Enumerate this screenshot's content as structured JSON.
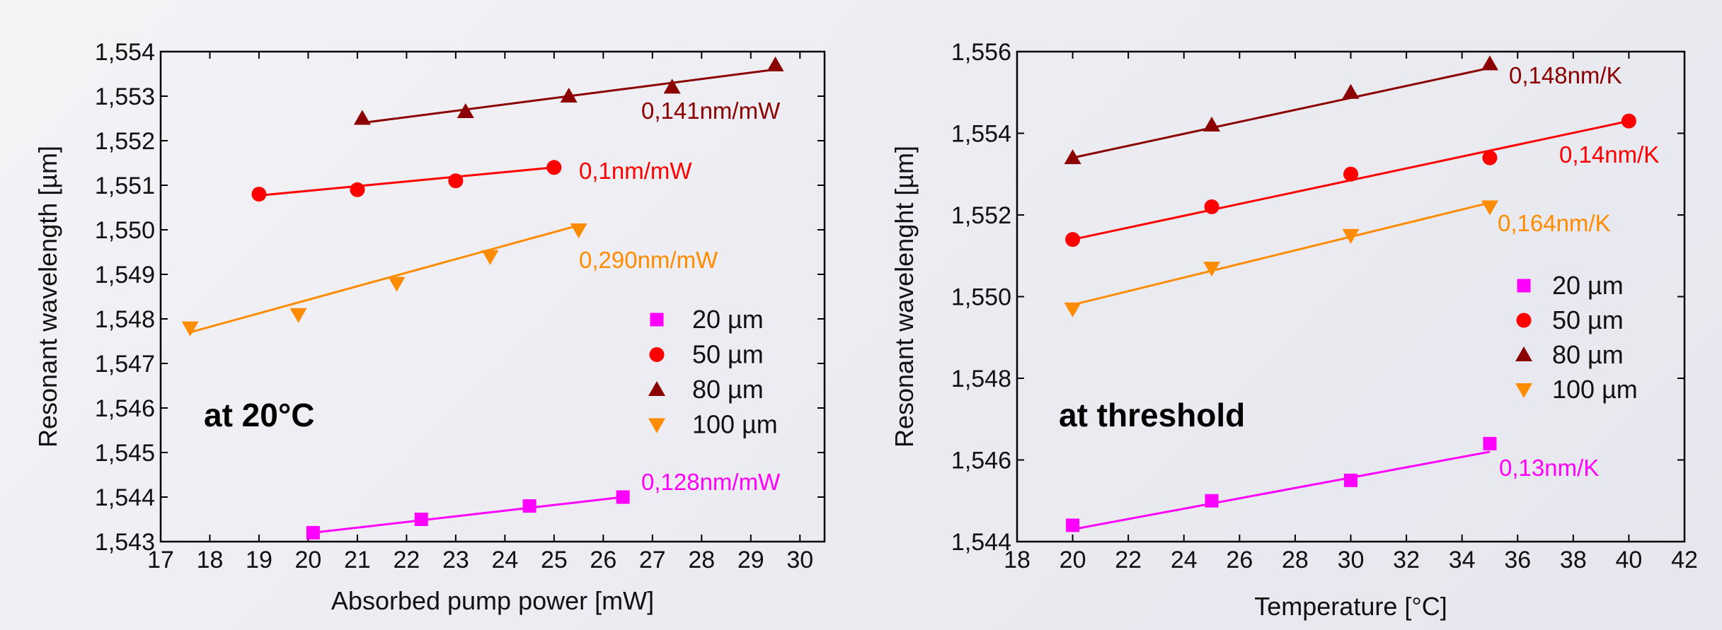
{
  "chart_data": [
    {
      "type": "scatter",
      "xlabel": "Absorbed pump power [mW]",
      "ylabel": "Resonant wavelength [µm]",
      "xlim": [
        17,
        30.5
      ],
      "ylim": [
        1.543,
        1.554
      ],
      "xticks": [
        17,
        18,
        19,
        20,
        21,
        22,
        23,
        24,
        25,
        26,
        27,
        28,
        29,
        30
      ],
      "yticks": [
        1.543,
        1.544,
        1.545,
        1.546,
        1.547,
        1.548,
        1.549,
        1.55,
        1.551,
        1.552,
        1.553,
        1.554
      ],
      "xtick_labels": [
        "17",
        "18",
        "19",
        "20",
        "21",
        "22",
        "23",
        "24",
        "25",
        "26",
        "27",
        "28",
        "29",
        "30"
      ],
      "ytick_labels": [
        "1,543",
        "1,544",
        "1,545",
        "1,546",
        "1,547",
        "1,548",
        "1,549",
        "1,550",
        "1,551",
        "1,552",
        "1,553",
        "1,554"
      ],
      "annotation": "at 20°C",
      "legend_placement": "lower-right",
      "series": [
        {
          "name": "20 µm",
          "marker": "square",
          "color": "#ff00ff",
          "x": [
            20.1,
            22.3,
            24.5,
            26.4
          ],
          "y": [
            1.5432,
            1.5435,
            1.5438,
            1.544
          ],
          "fit": [
            [
              20.1,
              1.5432
            ],
            [
              26.4,
              1.544
            ]
          ],
          "slope_label": "0,128nm/mW"
        },
        {
          "name": "50 µm",
          "marker": "circle",
          "color": "#ff0000",
          "x": [
            19.0,
            21.0,
            23.0,
            25.0
          ],
          "y": [
            1.5508,
            1.5509,
            1.5511,
            1.5514
          ],
          "fit": [
            [
              19.0,
              1.55077
            ],
            [
              25.0,
              1.5514
            ]
          ],
          "slope_label": "0,1nm/mW"
        },
        {
          "name": "80 µm",
          "marker": "triangle-up",
          "color": "#8b0000",
          "x": [
            21.1,
            23.2,
            25.3,
            27.4,
            29.5
          ],
          "y": [
            1.5525,
            1.55265,
            1.553,
            1.5532,
            1.5537
          ],
          "fit": [
            [
              21.1,
              1.5524
            ],
            [
              29.5,
              1.5536
            ]
          ],
          "slope_label": "0,141nm/mW"
        },
        {
          "name": "100 µm",
          "marker": "triangle-down",
          "color": "#ff8c00",
          "x": [
            17.6,
            19.8,
            21.8,
            23.7,
            25.5
          ],
          "y": [
            1.5478,
            1.5481,
            1.5488,
            1.5494,
            1.55
          ],
          "fit": [
            [
              17.6,
              1.5477
            ],
            [
              25.5,
              1.5501
            ]
          ],
          "slope_label": "0,290nm/mW"
        }
      ]
    },
    {
      "type": "scatter",
      "xlabel": "Temperature [°C]",
      "ylabel": "Resonant wavelenght [µm]",
      "xlim": [
        18,
        42
      ],
      "ylim": [
        1.544,
        1.556
      ],
      "xticks": [
        18,
        20,
        22,
        24,
        26,
        28,
        30,
        32,
        34,
        36,
        38,
        40,
        42
      ],
      "yticks": [
        1.544,
        1.546,
        1.548,
        1.55,
        1.552,
        1.554,
        1.556
      ],
      "xtick_labels": [
        "18",
        "20",
        "22",
        "24",
        "26",
        "28",
        "30",
        "32",
        "34",
        "36",
        "38",
        "40",
        "42"
      ],
      "ytick_labels": [
        "1,544",
        "1,546",
        "1,548",
        "1,550",
        "1,552",
        "1,554",
        "1,556"
      ],
      "annotation": "at threshold",
      "legend_placement": "right-middle",
      "series": [
        {
          "name": "20 µm",
          "marker": "square",
          "color": "#ff00ff",
          "x": [
            20,
            25,
            30,
            35
          ],
          "y": [
            1.5444,
            1.545,
            1.5455,
            1.5464
          ],
          "fit": [
            [
              20,
              1.5443
            ],
            [
              35,
              1.5462
            ]
          ],
          "slope_label": "0,13nm/K"
        },
        {
          "name": "50 µm",
          "marker": "circle",
          "color": "#ff0000",
          "x": [
            20,
            25,
            30,
            35,
            40
          ],
          "y": [
            1.5514,
            1.5522,
            1.553,
            1.5534,
            1.5543
          ],
          "fit": [
            [
              20,
              1.5514
            ],
            [
              40,
              1.5543
            ]
          ],
          "slope_label": "0,14nm/K"
        },
        {
          "name": "80 µm",
          "marker": "triangle-up",
          "color": "#8b0000",
          "x": [
            20,
            25,
            30,
            35
          ],
          "y": [
            1.5534,
            1.5542,
            1.555,
            1.5557
          ],
          "fit": [
            [
              20,
              1.5534
            ],
            [
              35,
              1.5556
            ]
          ],
          "slope_label": "0,148nm/K"
        },
        {
          "name": "100 µm",
          "marker": "triangle-down",
          "color": "#ff8c00",
          "x": [
            20,
            25,
            30,
            35
          ],
          "y": [
            1.5497,
            1.5507,
            1.5515,
            1.5522
          ],
          "fit": [
            [
              20,
              1.5498
            ],
            [
              35,
              1.5523
            ]
          ],
          "slope_label": "0,164nm/K"
        }
      ]
    }
  ]
}
